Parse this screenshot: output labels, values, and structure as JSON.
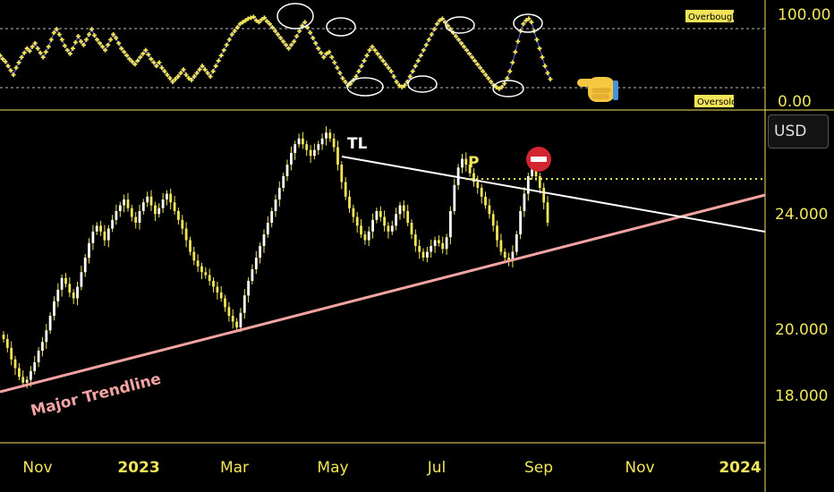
{
  "chart_data": [
    {
      "type": "line",
      "name": "Oscillator",
      "ylim": [
        0,
        100
      ],
      "y_ticks": [
        "100.00",
        "0.00"
      ],
      "levels": [
        {
          "value": 90,
          "label": "Overbought"
        },
        {
          "value": 18,
          "label": "Oversold"
        }
      ],
      "values": [
        52,
        48,
        45,
        40,
        35,
        30,
        38,
        44,
        50,
        55,
        60,
        57,
        62,
        66,
        60,
        55,
        50,
        56,
        62,
        70,
        78,
        82,
        76,
        70,
        63,
        58,
        54,
        60,
        67,
        74,
        68,
        64,
        70,
        76,
        82,
        75,
        70,
        66,
        62,
        58,
        64,
        70,
        76,
        72,
        66,
        60,
        56,
        52,
        48,
        45,
        42,
        46,
        50,
        54,
        58,
        53,
        48,
        44,
        40,
        44,
        38,
        34,
        30,
        26,
        22,
        25,
        28,
        32,
        36,
        30,
        26,
        24,
        28,
        32,
        36,
        40,
        36,
        32,
        28,
        34,
        40,
        46,
        52,
        58,
        64,
        70,
        76,
        80,
        84,
        88,
        90,
        92,
        94,
        95,
        96,
        92,
        90,
        93,
        95,
        91,
        88,
        84,
        80,
        76,
        72,
        68,
        64,
        60,
        64,
        68,
        74,
        80,
        86,
        90,
        84,
        78,
        72,
        66,
        60,
        55,
        50,
        54,
        56,
        50,
        44,
        38,
        32,
        26,
        22,
        18,
        20,
        24,
        28,
        34,
        40,
        46,
        52,
        58,
        62,
        58,
        54,
        50,
        46,
        42,
        38,
        34,
        28,
        22,
        18,
        16,
        18,
        22,
        28,
        34,
        40,
        46,
        52,
        58,
        64,
        70,
        76,
        82,
        88,
        92,
        94,
        90,
        86,
        82,
        78,
        74,
        70,
        66,
        62,
        58,
        54,
        50,
        46,
        42,
        38,
        34,
        30,
        26,
        22,
        18,
        16,
        14,
        16,
        20,
        26,
        34,
        44,
        56,
        68,
        80,
        88,
        92,
        94,
        90,
        80,
        70,
        60,
        50,
        40,
        32,
        25
      ],
      "annotations": [
        "hand-pointing-left"
      ]
    },
    {
      "type": "candlestick",
      "name": "Price",
      "currency": "USD",
      "ylim": [
        16.3,
        27.2
      ],
      "y_ticks": [
        "24.000",
        "20.000",
        "18.000"
      ],
      "x_ticks": [
        "Nov",
        "2023",
        "Mar",
        "May",
        "Jul",
        "Sep",
        "Nov",
        "2024"
      ],
      "close": [
        19.6,
        19.3,
        18.9,
        18.6,
        18.3,
        18.1,
        18.2,
        18.5,
        18.8,
        19.2,
        19.5,
        19.9,
        20.4,
        20.9,
        21.3,
        21.7,
        21.5,
        21.2,
        21.0,
        21.4,
        21.9,
        22.4,
        22.9,
        23.3,
        23.5,
        23.3,
        23.0,
        23.4,
        23.7,
        24.0,
        24.2,
        24.4,
        24.1,
        23.8,
        23.6,
        24.0,
        24.3,
        24.5,
        24.2,
        23.9,
        24.1,
        24.4,
        24.6,
        24.3,
        24.0,
        23.7,
        23.4,
        23.0,
        22.6,
        22.3,
        22.1,
        21.9,
        21.8,
        21.6,
        21.4,
        21.2,
        21.0,
        20.7,
        20.4,
        20.2,
        20.0,
        20.5,
        21.1,
        21.6,
        22.0,
        22.4,
        22.8,
        23.2,
        23.6,
        24.0,
        24.4,
        24.8,
        25.2,
        25.6,
        26.0,
        26.3,
        26.5,
        26.3,
        26.1,
        25.9,
        26.1,
        26.3,
        26.5,
        26.7,
        26.5,
        26.2,
        25.6,
        25.0,
        24.5,
        24.1,
        23.8,
        23.5,
        23.2,
        23.0,
        23.3,
        23.7,
        24.0,
        23.8,
        23.5,
        23.3,
        23.5,
        23.9,
        24.2,
        24.0,
        23.6,
        23.2,
        22.8,
        22.6,
        22.4,
        22.6,
        22.8,
        23.0,
        22.9,
        22.7,
        23.1,
        24.0,
        24.9,
        25.5,
        25.8,
        25.6,
        25.3,
        25.0,
        24.8,
        24.5,
        24.2,
        23.9,
        23.5,
        23.0,
        22.6,
        22.4,
        22.3,
        22.6,
        23.2,
        24.0,
        24.6,
        25.2,
        25.5,
        25.2,
        24.8,
        24.3,
        23.6
      ],
      "annotations": [
        {
          "text": "TL",
          "kind": "descending-trendline"
        },
        {
          "text": "P",
          "kind": "dotted-resistance-level"
        },
        {
          "text": "Major Trendline",
          "kind": "ascending-support-trendline"
        },
        {
          "kind": "no-entry-icon"
        }
      ]
    }
  ],
  "colors": {
    "background": "#000000",
    "candle": "#f2e55a",
    "oscillator_dot": "#f2e55a",
    "oscillator_line": "#6a5acd",
    "trendline_major": "#f4a3a3",
    "trendline_tl": "#ffffff",
    "axis_text": "#f2e55a",
    "badge_bg": "#f2e55a",
    "divider": "#f2e55a",
    "no_entry": "#d22630"
  },
  "currency_button": "USD"
}
